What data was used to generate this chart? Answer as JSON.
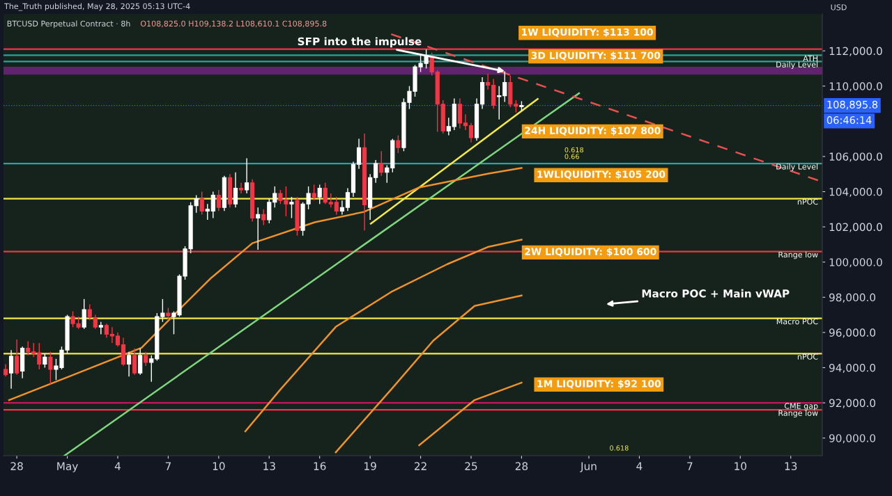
{
  "chart_data": {
    "type": "candlestick",
    "title": "BTCUSD Perpetual Contract · 8h",
    "subtitle": "O108,825.0 H109,138.2 L108,610.1 C108,895.8",
    "ylabel": "USD",
    "xlim": [
      "2025-04-27T05:00",
      "2025-06-14T21:00"
    ],
    "ylim": [
      89000,
      114100
    ],
    "xticks": [
      {
        "value": "2025-04-28",
        "label": "28"
      },
      {
        "value": "2025-05-01",
        "label": "May"
      },
      {
        "value": "2025-05-04",
        "label": "4"
      },
      {
        "value": "2025-05-07",
        "label": "7"
      },
      {
        "value": "2025-05-10",
        "label": "10"
      },
      {
        "value": "2025-05-13",
        "label": "13"
      },
      {
        "value": "2025-05-16",
        "label": "16"
      },
      {
        "value": "2025-05-19",
        "label": "19"
      },
      {
        "value": "2025-05-22",
        "label": "22"
      },
      {
        "value": "2025-05-25",
        "label": "25"
      },
      {
        "value": "2025-05-28",
        "label": "28"
      },
      {
        "value": "2025-06-01",
        "label": "Jun"
      },
      {
        "value": "2025-06-04",
        "label": "4"
      },
      {
        "value": "2025-06-07",
        "label": "7"
      },
      {
        "value": "2025-06-10",
        "label": "10"
      },
      {
        "value": "2025-06-13",
        "label": "13"
      }
    ],
    "yticks": [
      {
        "value": 90000,
        "label": "90,000.0"
      },
      {
        "value": 92000,
        "label": "92,000.0"
      },
      {
        "value": 94000,
        "label": "94,000.0"
      },
      {
        "value": 96000,
        "label": "96,000.0"
      },
      {
        "value": 98000,
        "label": "98,000.0"
      },
      {
        "value": 100000,
        "label": "100,000.0"
      },
      {
        "value": 102000,
        "label": "102,000.0"
      },
      {
        "value": 104000,
        "label": "104,000.0"
      },
      {
        "value": 106000,
        "label": "106,000.0"
      },
      {
        "value": 110000,
        "label": "110,000.0"
      },
      {
        "value": 112000,
        "label": "112,000.0"
      }
    ],
    "x": [
      "2025-04-27T08:00",
      "2025-04-27T16:00",
      "2025-04-28T00:00",
      "2025-04-28T08:00",
      "2025-04-28T16:00",
      "2025-04-29T00:00",
      "2025-04-29T08:00",
      "2025-04-29T16:00",
      "2025-04-30T00:00",
      "2025-04-30T08:00",
      "2025-04-30T16:00",
      "2025-05-01T00:00",
      "2025-05-01T08:00",
      "2025-05-01T16:00",
      "2025-05-02T00:00",
      "2025-05-02T08:00",
      "2025-05-02T16:00",
      "2025-05-03T00:00",
      "2025-05-03T08:00",
      "2025-05-03T16:00",
      "2025-05-04T00:00",
      "2025-05-04T08:00",
      "2025-05-04T16:00",
      "2025-05-05T00:00",
      "2025-05-05T08:00",
      "2025-05-05T16:00",
      "2025-05-06T00:00",
      "2025-05-06T08:00",
      "2025-05-06T16:00",
      "2025-05-07T00:00",
      "2025-05-07T08:00",
      "2025-05-07T16:00",
      "2025-05-08T00:00",
      "2025-05-08T08:00",
      "2025-05-08T16:00",
      "2025-05-09T00:00",
      "2025-05-09T08:00",
      "2025-05-09T16:00",
      "2025-05-10T00:00",
      "2025-05-10T08:00",
      "2025-05-10T16:00",
      "2025-05-11T00:00",
      "2025-05-11T08:00",
      "2025-05-11T16:00",
      "2025-05-12T00:00",
      "2025-05-12T08:00",
      "2025-05-12T16:00",
      "2025-05-13T00:00",
      "2025-05-13T08:00",
      "2025-05-13T16:00",
      "2025-05-14T00:00",
      "2025-05-14T08:00",
      "2025-05-14T16:00",
      "2025-05-15T00:00",
      "2025-05-15T08:00",
      "2025-05-15T16:00",
      "2025-05-16T00:00",
      "2025-05-16T08:00",
      "2025-05-16T16:00",
      "2025-05-17T00:00",
      "2025-05-17T08:00",
      "2025-05-17T16:00",
      "2025-05-18T00:00",
      "2025-05-18T08:00",
      "2025-05-18T16:00",
      "2025-05-19T00:00",
      "2025-05-19T08:00",
      "2025-05-19T16:00",
      "2025-05-20T00:00",
      "2025-05-20T08:00",
      "2025-05-20T16:00",
      "2025-05-21T00:00",
      "2025-05-21T08:00",
      "2025-05-21T16:00",
      "2025-05-22T00:00",
      "2025-05-22T08:00",
      "2025-05-22T16:00",
      "2025-05-23T00:00",
      "2025-05-23T08:00",
      "2025-05-23T16:00",
      "2025-05-24T00:00",
      "2025-05-24T08:00",
      "2025-05-24T16:00",
      "2025-05-25T00:00",
      "2025-05-25T08:00",
      "2025-05-25T16:00",
      "2025-05-26T00:00",
      "2025-05-26T08:00",
      "2025-05-26T16:00",
      "2025-05-27T00:00",
      "2025-05-27T08:00",
      "2025-05-27T16:00",
      "2025-05-28T00:00"
    ],
    "ohlc": [
      [
        93900,
        94200,
        93500,
        93600
      ],
      [
        93700,
        95000,
        92800,
        94650
      ],
      [
        94650,
        95600,
        93600,
        93700
      ],
      [
        93800,
        95200,
        93400,
        95100
      ],
      [
        95100,
        95500,
        94700,
        94900
      ],
      [
        94900,
        95400,
        94600,
        94800
      ],
      [
        94850,
        95400,
        93900,
        94200
      ],
      [
        94200,
        94800,
        94000,
        94600
      ],
      [
        94600,
        94900,
        93050,
        93900
      ],
      [
        93900,
        94500,
        93300,
        94100
      ],
      [
        94000,
        95200,
        93900,
        95000
      ],
      [
        95000,
        97000,
        94800,
        96900
      ],
      [
        96900,
        97200,
        96300,
        96500
      ],
      [
        96500,
        96900,
        96200,
        96300
      ],
      [
        96300,
        97900,
        96200,
        97300
      ],
      [
        97300,
        97600,
        96700,
        96900
      ],
      [
        96800,
        97000,
        96200,
        96300
      ],
      [
        96300,
        96600,
        95900,
        96400
      ],
      [
        96400,
        96500,
        95700,
        95900
      ],
      [
        95900,
        96300,
        95400,
        95800
      ],
      [
        95800,
        96000,
        95200,
        95300
      ],
      [
        95300,
        95700,
        94100,
        94200
      ],
      [
        94200,
        94900,
        93500,
        94700
      ],
      [
        94700,
        95100,
        93600,
        93700
      ],
      [
        93700,
        95100,
        93600,
        94700
      ],
      [
        94700,
        94900,
        94100,
        94300
      ],
      [
        94300,
        94700,
        93200,
        94500
      ],
      [
        94500,
        97100,
        94400,
        96900
      ],
      [
        96900,
        97900,
        96600,
        97100
      ],
      [
        97100,
        97400,
        96700,
        96950
      ],
      [
        96900,
        97200,
        95900,
        97100
      ],
      [
        97000,
        99300,
        96900,
        99200
      ],
      [
        99200,
        100900,
        99000,
        100750
      ],
      [
        100750,
        103400,
        100500,
        103200
      ],
      [
        103200,
        103800,
        102800,
        103600
      ],
      [
        103600,
        104000,
        102700,
        102900
      ],
      [
        102900,
        103300,
        102400,
        103000
      ],
      [
        102900,
        104000,
        102500,
        103800
      ],
      [
        103800,
        104100,
        102900,
        103100
      ],
      [
        103100,
        104900,
        102900,
        104800
      ],
      [
        104800,
        105000,
        103100,
        103300
      ],
      [
        103300,
        105100,
        103100,
        104200
      ],
      [
        104200,
        104500,
        103900,
        104100
      ],
      [
        104100,
        105900,
        103900,
        104500
      ],
      [
        104500,
        104700,
        102300,
        102500
      ],
      [
        102500,
        103100,
        100700,
        102700
      ],
      [
        102700,
        103000,
        102100,
        102400
      ],
      [
        102400,
        103600,
        102200,
        103400
      ],
      [
        103400,
        104300,
        103100,
        103900
      ],
      [
        103900,
        104100,
        103300,
        103500
      ],
      [
        103500,
        104300,
        102600,
        103300
      ],
      [
        103300,
        103700,
        102500,
        103400
      ],
      [
        103500,
        103700,
        101500,
        101800
      ],
      [
        101800,
        103400,
        101500,
        103300
      ],
      [
        103300,
        104300,
        103000,
        103900
      ],
      [
        103900,
        104400,
        103500,
        103700
      ],
      [
        103700,
        104400,
        103300,
        104200
      ],
      [
        104200,
        104500,
        103300,
        103400
      ],
      [
        103400,
        103900,
        103100,
        103300
      ],
      [
        103400,
        103700,
        102700,
        102900
      ],
      [
        102900,
        103500,
        102700,
        103100
      ],
      [
        103100,
        104200,
        102900,
        103950
      ],
      [
        103950,
        105700,
        103700,
        105550
      ],
      [
        105550,
        107000,
        105300,
        106500
      ],
      [
        106500,
        107300,
        101800,
        103250
      ],
      [
        103100,
        105000,
        102400,
        104800
      ],
      [
        104800,
        105800,
        104500,
        105600
      ],
      [
        105600,
        106300,
        104900,
        105100
      ],
      [
        105100,
        105500,
        104500,
        105350
      ],
      [
        105350,
        107000,
        105100,
        106900
      ],
      [
        106900,
        107200,
        106200,
        106500
      ],
      [
        106500,
        109300,
        106300,
        109070
      ],
      [
        109070,
        110000,
        108700,
        109700
      ],
      [
        109700,
        111200,
        109400,
        111090
      ],
      [
        111090,
        111770,
        110800,
        111290
      ],
      [
        111290,
        112080,
        111000,
        111700
      ],
      [
        111700,
        111900,
        110600,
        110800
      ],
      [
        110800,
        110900,
        107400,
        108970
      ],
      [
        108970,
        109200,
        107300,
        107450
      ],
      [
        107450,
        108200,
        107200,
        107700
      ],
      [
        107700,
        109300,
        107500,
        108970
      ],
      [
        108970,
        109300,
        107600,
        107900
      ],
      [
        107900,
        108400,
        107500,
        107750
      ],
      [
        107750,
        107900,
        106800,
        107070
      ],
      [
        107070,
        109300,
        106900,
        108970
      ],
      [
        108970,
        110500,
        108700,
        110200
      ],
      [
        110200,
        110700,
        109800,
        110050
      ],
      [
        110050,
        110400,
        108700,
        108900
      ],
      [
        109400,
        110000,
        108100,
        109450
      ],
      [
        109450,
        110840,
        109100,
        110200
      ],
      [
        110200,
        110600,
        108800,
        108970
      ],
      [
        108970,
        109200,
        108500,
        108850
      ],
      [
        108825.0,
        109138.2,
        108610.1,
        108895.8
      ]
    ],
    "colors": [
      "#f23645",
      "#ffffff",
      "#f23645",
      "#ffffff",
      "#f23645",
      "#f23645",
      "#f23645",
      "#ffffff",
      "#f23645",
      "#ffffff",
      "#ffffff",
      "#ffffff",
      "#f23645",
      "#f23645",
      "#ffffff",
      "#f23645",
      "#f23645",
      "#ffffff",
      "#f23645",
      "#f23645",
      "#f23645",
      "#f23645",
      "#ffffff",
      "#f23645",
      "#ffffff",
      "#f23645",
      "#ffffff",
      "#ffffff",
      "#ffffff",
      "#f23645",
      "#ffffff",
      "#ffffff",
      "#ffffff",
      "#ffffff",
      "#ffffff",
      "#f23645",
      "#ffffff",
      "#ffffff",
      "#f23645",
      "#ffffff",
      "#f23645",
      "#ffffff",
      "#f23645",
      "#ffffff",
      "#f23645",
      "#ffffff",
      "#f23645",
      "#ffffff",
      "#ffffff",
      "#f23645",
      "#f23645",
      "#ffffff",
      "#f23645",
      "#ffffff",
      "#ffffff",
      "#f23645",
      "#ffffff",
      "#f23645",
      "#f23645",
      "#f23645",
      "#ffffff",
      "#ffffff",
      "#ffffff",
      "#ffffff",
      "#f23645",
      "#ffffff",
      "#ffffff",
      "#f23645",
      "#ffffff",
      "#ffffff",
      "#f23645",
      "#ffffff",
      "#ffffff",
      "#ffffff",
      "#ffffff",
      "#ffffff",
      "#f23645",
      "#f23645",
      "#f23645",
      "#ffffff",
      "#ffffff",
      "#f23645",
      "#f23645",
      "#f23645",
      "#ffffff",
      "#ffffff",
      "#f23645",
      "#f23645",
      "#ffffff",
      "#ffffff",
      "#f23645",
      "#f23645",
      "#ffffff"
    ],
    "series": [
      {
        "type": "line",
        "color": "#7ed67e",
        "line_style": "solid",
        "x": [
          "2025-04-30T20:00",
          "2025-05-31T10:00"
        ],
        "values": [
          89000,
          109590
        ]
      },
      {
        "type": "line",
        "color": "#f5e94a",
        "line_style": "solid",
        "x": [
          "2025-05-19T01:00",
          "2025-05-28T23:00"
        ],
        "values": [
          102180,
          109270
        ]
      },
      {
        "type": "line",
        "color": "#e84f4f",
        "line_style": "dashed",
        "x": [
          "2025-05-20T06:00",
          "2025-06-14T21:00"
        ],
        "values": [
          112950,
          104560
        ]
      },
      {
        "type": "line",
        "color": "#f0922b",
        "line_style": "solid",
        "x": [
          "2025-04-27T13:00",
          "2025-05-01T06:00",
          "2025-05-05T10:00",
          "2025-05-07T21:00",
          "2025-05-09T13:00",
          "2025-05-12T00:00",
          "2025-05-15T17:00",
          "2025-05-18T15:00",
          "2025-05-21T22:00",
          "2025-05-26T01:00",
          "2025-05-28T00:00"
        ],
        "values": [
          92160,
          93550,
          95130,
          97510,
          99090,
          101070,
          102260,
          102850,
          104240,
          105030,
          105350
        ]
      },
      {
        "type": "line",
        "color": "#f0922b",
        "line_style": "solid",
        "x": [
          "2025-05-11T14:00",
          "2025-05-13T16:00",
          "2025-05-16T23:00",
          "2025-05-20T06:00",
          "2025-05-23T14:00",
          "2025-05-26T01:00",
          "2025-05-28T00:00"
        ],
        "values": [
          90380,
          92760,
          96320,
          98300,
          99880,
          100870,
          101270
        ]
      },
      {
        "type": "line",
        "color": "#f0922b",
        "line_style": "solid",
        "x": [
          "2025-05-16T23:00",
          "2025-05-20T06:00",
          "2025-05-22T18:00",
          "2025-05-25T05:00",
          "2025-05-28T00:00"
        ],
        "values": [
          89190,
          92760,
          95530,
          97510,
          98100
        ]
      },
      {
        "type": "line",
        "color": "#f0922b",
        "line_style": "solid",
        "x": [
          "2025-05-21T22:00",
          "2025-05-25T05:00",
          "2025-05-28T00:00"
        ],
        "values": [
          89590,
          92160,
          93150
        ]
      }
    ],
    "ref_lines": [
      {
        "axis": "y",
        "value": 112100,
        "color": "#f23645",
        "line_style": "solid"
      },
      {
        "axis": "y",
        "value": 111750,
        "label": "ATH",
        "color": "#26a69a",
        "line_style": "solid"
      },
      {
        "axis": "y",
        "value": 111400,
        "label": "Daily Level",
        "color": "#26a69a",
        "line_style": "solid"
      },
      {
        "axis": "y",
        "value": 108895.8,
        "label": "108,895.8",
        "color": "#2962ff",
        "line_style": "dotted"
      },
      {
        "axis": "y",
        "value": 105600,
        "label": "Daily Level",
        "color": "#26a69a",
        "line_style": "solid"
      },
      {
        "axis": "y",
        "value": 103600,
        "label": "nPOC",
        "color": "#f5e94a",
        "line_style": "solid"
      },
      {
        "axis": "y",
        "value": 100600,
        "label": "Range low",
        "color": "#f23645",
        "line_style": "solid"
      },
      {
        "axis": "y",
        "value": 96800,
        "label": "Macro POC",
        "color": "#f5e94a",
        "line_style": "solid"
      },
      {
        "axis": "y",
        "value": 94800,
        "label": "nPOC",
        "color": "#f5e94a",
        "line_style": "solid"
      },
      {
        "axis": "y",
        "value": 92000,
        "label": "CME gap",
        "color": "#c2185b",
        "line_style": "solid"
      },
      {
        "axis": "y",
        "value": 91600,
        "label": "Range low",
        "color": "#f23645",
        "line_style": "solid"
      }
    ],
    "bands": [
      {
        "axis": "y",
        "from": 110650,
        "to": 111100,
        "color": "#9c27b0"
      }
    ],
    "annotations": [
      {
        "text": "SFP into the impulse",
        "x": "2025-05-27T00:00",
        "y": 110840
      },
      "The_Truth published, May 28, 2025 05:13 UTC-4",
      "06:46:14",
      "1W LIQUIDITY: $113 100",
      "3D LIQUIDITY: $111 700",
      "24H LIQUIDITY: $107 800",
      "1WLIQUIDITY: $105 200",
      "2W LIQUIDITY: $100 600",
      "1M LIQUIDITY: $92 100",
      "Macro POC + Main vWAP",
      "0.618",
      "0.66",
      "0.618"
    ]
  }
}
